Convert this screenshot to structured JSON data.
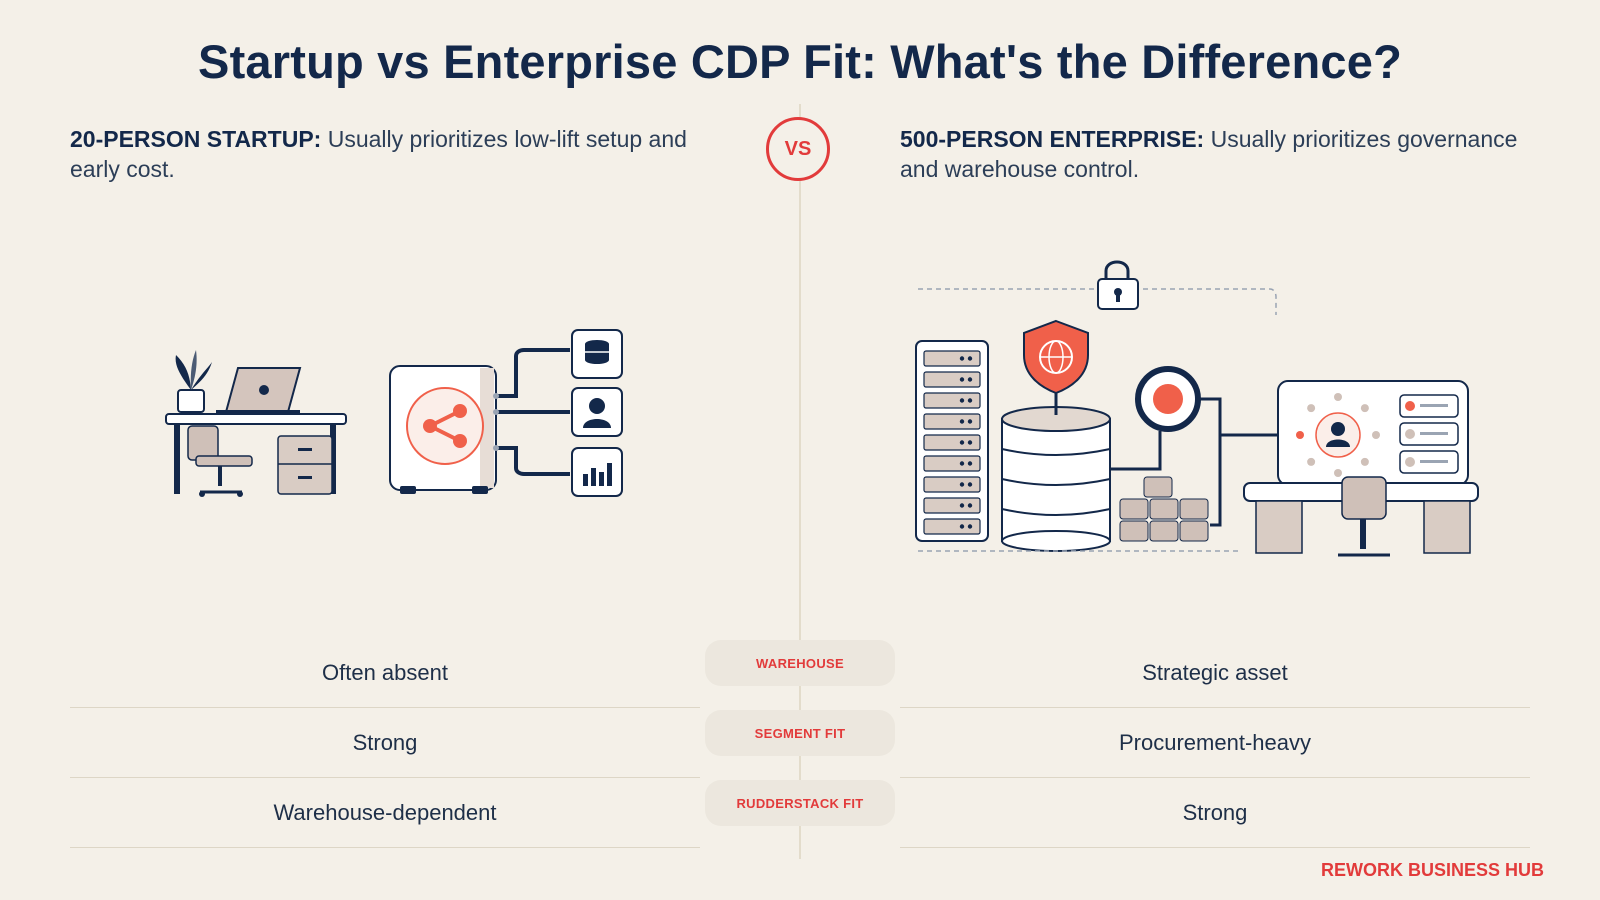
{
  "title": "Startup vs Enterprise CDP Fit: What's the Difference?",
  "vs_label": "VS",
  "left": {
    "heading": "20-PERSON STARTUP:",
    "description": " Usually prioritizes low-lift setup and early cost."
  },
  "right": {
    "heading": "500-PERSON ENTERPRISE:",
    "description": " Usually prioritizes governance and warehouse control."
  },
  "comparison": [
    {
      "label": "WAREHOUSE",
      "startup": "Often absent",
      "enterprise": "Strategic asset"
    },
    {
      "label": "SEGMENT FIT",
      "startup": "Strong",
      "enterprise": "Procurement-heavy"
    },
    {
      "label": "RUDDERSTACK FIT",
      "startup": "Warehouse-dependent",
      "enterprise": "Strong"
    }
  ],
  "brand": "REWORK BUSINESS HUB",
  "colors": {
    "navy": "#13284a",
    "accent": "#e23b3b",
    "coral": "#f0604a",
    "background": "#f4f0e8"
  },
  "icons": {
    "startup_illustration": [
      "desk-icon",
      "plant-icon",
      "laptop-icon",
      "office-chair-icon",
      "share-hub-icon",
      "database-icon",
      "user-icon",
      "bar-chart-icon"
    ],
    "enterprise_illustration": [
      "server-rack-icon",
      "shield-globe-icon",
      "lock-icon",
      "database-stack-icon",
      "target-icon",
      "user-profile-icon",
      "workstation-icon"
    ]
  }
}
